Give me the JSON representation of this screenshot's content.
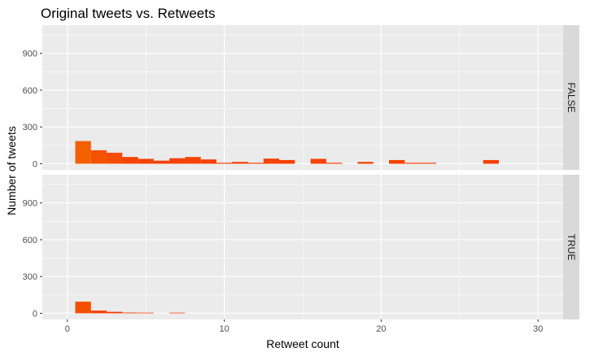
{
  "chart_data": {
    "type": "bar",
    "title": "Original tweets vs. Retweets",
    "xlabel": "Retweet count",
    "ylabel": "Number of tweets",
    "xlim": [
      -1.6,
      31.6
    ],
    "ylim": [
      -50,
      1130
    ],
    "x_ticks": [
      0,
      10,
      20,
      30
    ],
    "x_tick_labels": [
      "0",
      "10",
      "20",
      "30"
    ],
    "y_ticks": [
      0,
      300,
      600,
      900
    ],
    "y_tick_labels": [
      "0",
      "300",
      "600",
      "900"
    ],
    "bin_width": 1,
    "grid": true,
    "facet_strip_position": "right",
    "colors": {
      "panel_bg": "#ebebeb",
      "grid": "#ffffff",
      "strip_bg": "#d9d9d9",
      "bar_low": "#f46000",
      "bar_high": "#f43a00"
    },
    "panels": [
      {
        "label": "FALSE",
        "bars": [
          {
            "x": 1,
            "y": 185
          },
          {
            "x": 2,
            "y": 110
          },
          {
            "x": 3,
            "y": 90
          },
          {
            "x": 4,
            "y": 55
          },
          {
            "x": 5,
            "y": 40
          },
          {
            "x": 6,
            "y": 25
          },
          {
            "x": 7,
            "y": 45
          },
          {
            "x": 8,
            "y": 55
          },
          {
            "x": 9,
            "y": 35
          },
          {
            "x": 10,
            "y": 8
          },
          {
            "x": 11,
            "y": 15
          },
          {
            "x": 12,
            "y": 8
          },
          {
            "x": 13,
            "y": 42
          },
          {
            "x": 14,
            "y": 30
          },
          {
            "x": 16,
            "y": 40
          },
          {
            "x": 17,
            "y": 8
          },
          {
            "x": 19,
            "y": 15
          },
          {
            "x": 21,
            "y": 30
          },
          {
            "x": 22,
            "y": 8
          },
          {
            "x": 23,
            "y": 8
          },
          {
            "x": 27,
            "y": 30
          }
        ]
      },
      {
        "label": "TRUE",
        "bars": [
          {
            "x": 1,
            "y": 95
          },
          {
            "x": 2,
            "y": 22
          },
          {
            "x": 3,
            "y": 12
          },
          {
            "x": 4,
            "y": 6
          },
          {
            "x": 5,
            "y": 5
          },
          {
            "x": 7,
            "y": 5
          }
        ]
      }
    ]
  }
}
